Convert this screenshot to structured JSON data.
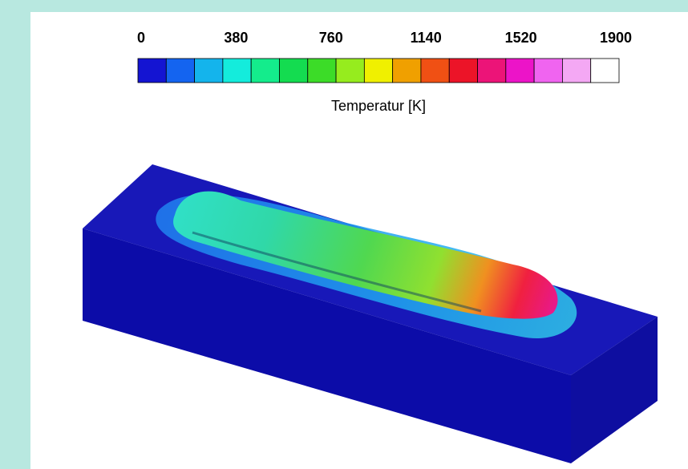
{
  "colorbar": {
    "ticks": [
      0,
      380,
      760,
      1140,
      1520,
      1900
    ],
    "label": "Temperatur [K]",
    "colors": [
      "#1414d2",
      "#1464f0",
      "#14b4ec",
      "#14ecdc",
      "#14ec8c",
      "#14dc50",
      "#3cdc28",
      "#96ec1e",
      "#f0f000",
      "#f0a000",
      "#f05014",
      "#ec1428",
      "#ec1478",
      "#ec14c8",
      "#f064f0",
      "#f4a8f4",
      "#ffffff"
    ]
  }
}
